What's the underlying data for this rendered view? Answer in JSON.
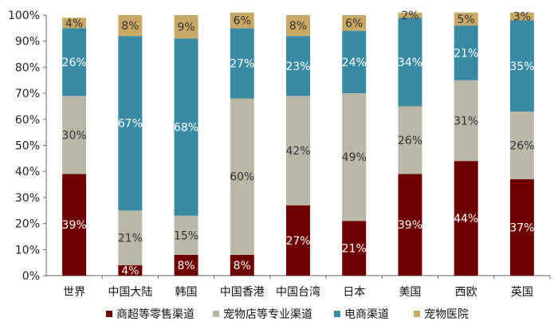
{
  "chart_data": {
    "type": "bar",
    "stacked": true,
    "title": "",
    "xlabel": "",
    "ylabel": "",
    "ylim": [
      0,
      100
    ],
    "y_ticks": [
      "0%",
      "10%",
      "20%",
      "30%",
      "40%",
      "50%",
      "60%",
      "70%",
      "80%",
      "90%",
      "100%"
    ],
    "categories": [
      "世界",
      "中国大陆",
      "韩国",
      "中国香港",
      "中国台湾",
      "日本",
      "美国",
      "西欧",
      "英国"
    ],
    "series": [
      {
        "name": "商超等零售渠道",
        "color": "#6e0000",
        "label_color": "#ffffff",
        "values": [
          39,
          4,
          8,
          8,
          27,
          21,
          39,
          44,
          37
        ]
      },
      {
        "name": "宠物店等专业渠道",
        "color": "#b9b8a6",
        "label_color": "#333333",
        "values": [
          30,
          21,
          15,
          60,
          42,
          49,
          26,
          31,
          26
        ]
      },
      {
        "name": "电商渠道",
        "color": "#3a8aa3",
        "label_color": "#ffffff",
        "values": [
          26,
          67,
          68,
          27,
          23,
          24,
          34,
          21,
          35
        ]
      },
      {
        "name": "宠物医院",
        "color": "#c9a866",
        "label_color": "#333333",
        "values": [
          4,
          8,
          9,
          6,
          8,
          6,
          2,
          5,
          3
        ]
      }
    ],
    "legend_position": "bottom",
    "grid": false
  }
}
